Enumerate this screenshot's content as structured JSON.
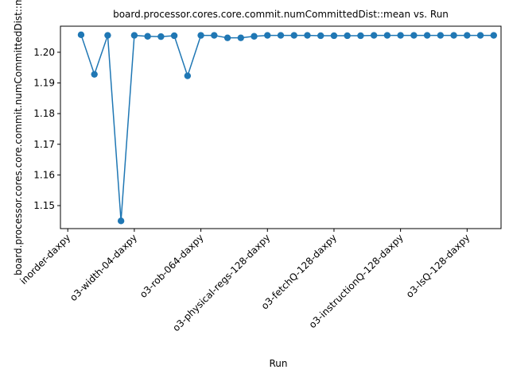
{
  "chart_data": {
    "type": "line",
    "title": "board.processor.cores.core.commit.numCommittedDist::mean vs. Run",
    "xlabel": "Run",
    "ylabel": "board.processor.cores.core.commit.numCommittedDist::mean",
    "ylim": [
      1.1425,
      1.2085
    ],
    "yticks": [
      1.15,
      1.16,
      1.17,
      1.18,
      1.19,
      1.2
    ],
    "ytick_labels": [
      "1.15",
      "1.16",
      "1.17",
      "1.18",
      "1.19",
      "1.20"
    ],
    "xticks": [
      {
        "index": 0,
        "label": "inorder-daxpy"
      },
      {
        "index": 5,
        "label": "o3-width-04-daxpy"
      },
      {
        "index": 10,
        "label": "o3-rob-064-daxpy"
      },
      {
        "index": 15,
        "label": "o3-physical-regs-128-daxpy"
      },
      {
        "index": 20,
        "label": "o3-fetchQ-128-daxpy"
      },
      {
        "index": 25,
        "label": "o3-instructionQ-128-daxpy"
      },
      {
        "index": 30,
        "label": "o3-lsQ-128-daxpy"
      }
    ],
    "grid": false,
    "legend": "none",
    "series": [
      {
        "color": "#1f77b4",
        "x": [
          1,
          2,
          3,
          4,
          5,
          6,
          7,
          8,
          9,
          10,
          11,
          12,
          13,
          14,
          15,
          16,
          17,
          18,
          19,
          20,
          21,
          22,
          23,
          24,
          25,
          26,
          27,
          28,
          29,
          30,
          31,
          32
        ],
        "values": [
          1.2057,
          1.1928,
          1.2055,
          1.145,
          1.2055,
          1.2052,
          1.2051,
          1.2054,
          1.1923,
          1.2055,
          1.2055,
          1.2047,
          1.2047,
          1.2052,
          1.2055,
          1.2055,
          1.2055,
          1.2055,
          1.2054,
          1.2054,
          1.2054,
          1.2054,
          1.2055,
          1.2055,
          1.2055,
          1.2055,
          1.2055,
          1.2055,
          1.2055,
          1.2055,
          1.2055,
          1.2055
        ]
      }
    ]
  }
}
